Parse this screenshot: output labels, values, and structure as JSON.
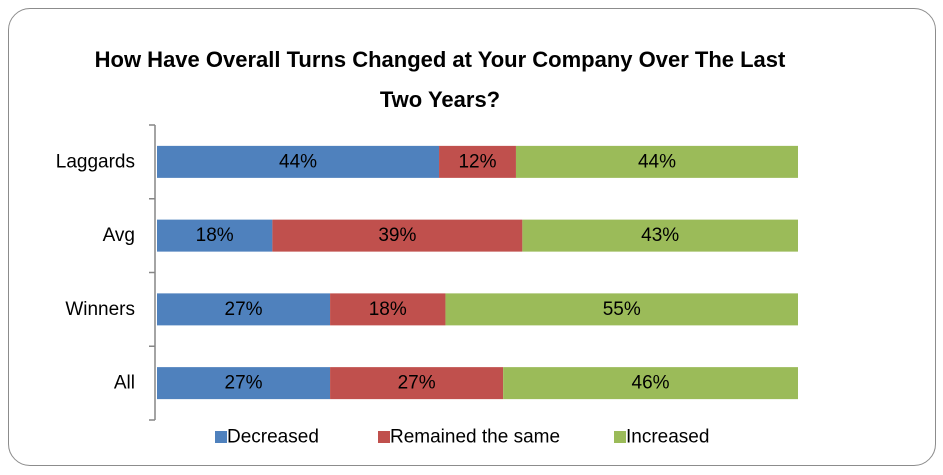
{
  "chart_data": {
    "type": "stacked-bar",
    "orientation": "horizontal",
    "title": "How Have Overall Turns Changed at Your Company Over The Last Two Years?",
    "categories": [
      "Laggards",
      "Avg",
      "Winners",
      "All"
    ],
    "series": [
      {
        "name": "Decreased",
        "color": "#4f81bd",
        "values": [
          44,
          18,
          27,
          27
        ],
        "value_labels": [
          "44%",
          "18%",
          "27%",
          "27%"
        ]
      },
      {
        "name": "Remained the same",
        "color": "#c0504d",
        "values": [
          12,
          39,
          18,
          27
        ],
        "value_labels": [
          "12%",
          "39%",
          "18%",
          "27%"
        ]
      },
      {
        "name": "Increased",
        "color": "#9bbb59",
        "values": [
          44,
          43,
          55,
          46
        ],
        "value_labels": [
          "44%",
          "43%",
          "55%",
          "46%"
        ]
      }
    ],
    "legend": "bottom"
  }
}
